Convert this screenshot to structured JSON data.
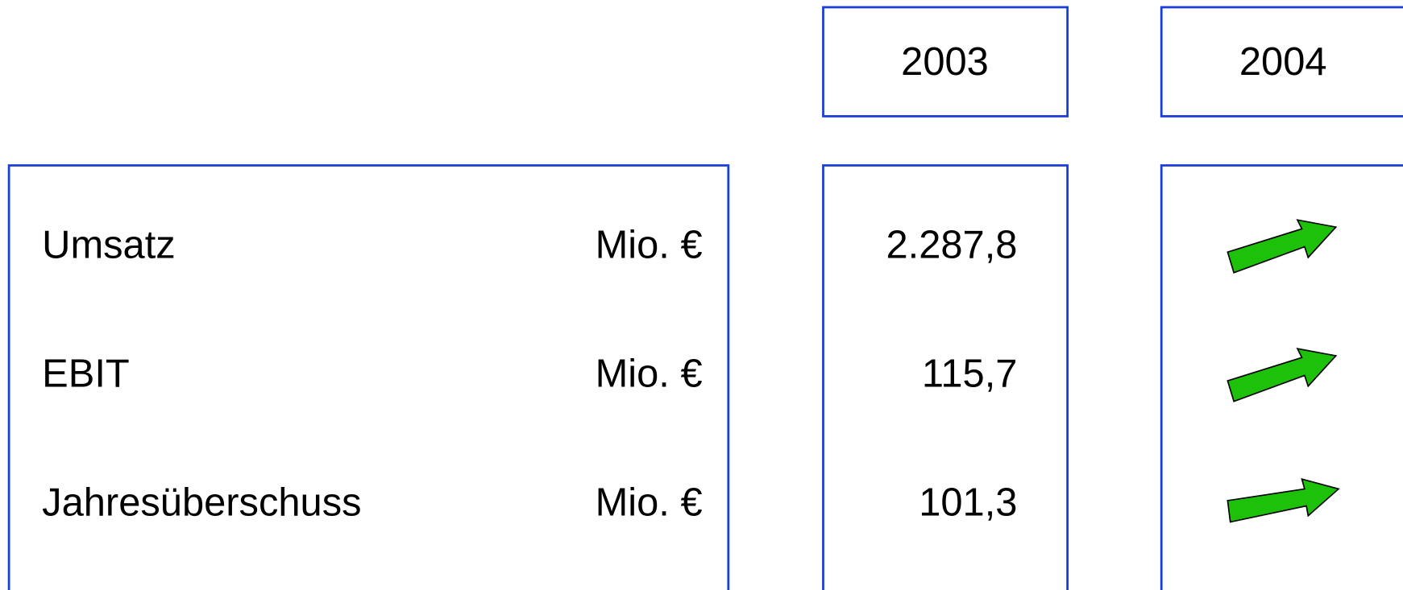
{
  "header": {
    "years": [
      "2003",
      "2004"
    ]
  },
  "table": {
    "rows": [
      {
        "label": "Umsatz",
        "unit": "Mio. €",
        "value": "2.287,8"
      },
      {
        "label": "EBIT",
        "unit": "Mio. €",
        "value": "115,7"
      },
      {
        "label": "Jahresüberschuss",
        "unit": "Mio. €",
        "value": "101,3"
      }
    ]
  }
}
